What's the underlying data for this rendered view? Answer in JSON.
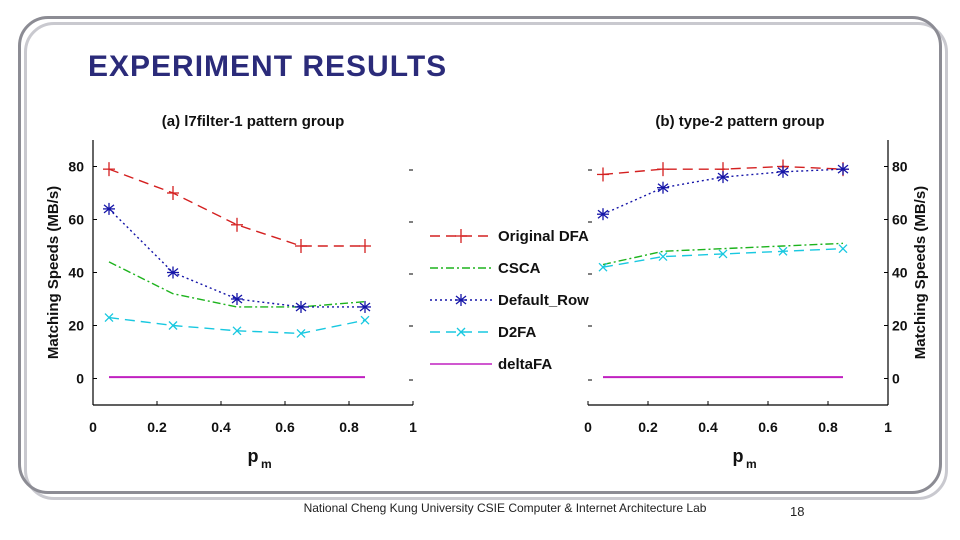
{
  "slide": {
    "title": "EXPERIMENT RESULTS",
    "footer": "National Cheng Kung University CSIE Computer & Internet Architecture Lab",
    "page_number": "18"
  },
  "legend": [
    {
      "name": "Original DFA",
      "color": "#d42020",
      "dash": "10,6",
      "marker": "plus"
    },
    {
      "name": "CSCA",
      "color": "#1db31d",
      "dash": "8,3,2,3",
      "marker": "none"
    },
    {
      "name": "Default_Row",
      "color": "#1515a8",
      "dash": "2,3",
      "marker": "asterisk"
    },
    {
      "name": "D2FA",
      "color": "#18c8e0",
      "dash": "10,6",
      "marker": "x"
    },
    {
      "name": "deltaFA",
      "color": "#c020c0",
      "dash": "",
      "marker": "none"
    }
  ],
  "chart_data": [
    {
      "type": "line",
      "title": "(a) l7filter-1 pattern group",
      "xlabel": "p",
      "xlabel_sub": "m",
      "ylabel": "Matching Speeds (MB/s)",
      "xlim": [
        0,
        1
      ],
      "ylim": [
        -10,
        90
      ],
      "xticks": [
        "0",
        "0.2",
        "0.4",
        "0.6",
        "0.8",
        "1"
      ],
      "yticks": [
        "0",
        "20",
        "40",
        "60",
        "80"
      ],
      "x": [
        0.05,
        0.25,
        0.45,
        0.65,
        0.85
      ],
      "series": [
        {
          "name": "Original DFA",
          "values": [
            79,
            70,
            58,
            50,
            50
          ]
        },
        {
          "name": "CSCA",
          "values": [
            44,
            32,
            27,
            27,
            29
          ]
        },
        {
          "name": "Default_Row",
          "values": [
            64,
            40,
            30,
            27,
            27
          ]
        },
        {
          "name": "D2FA",
          "values": [
            23,
            20,
            18,
            17,
            22
          ]
        },
        {
          "name": "deltaFA",
          "values": [
            0.5,
            0.5,
            0.5,
            0.5,
            0.5
          ]
        }
      ]
    },
    {
      "type": "line",
      "title": "(b) type-2 pattern group",
      "xlabel": "p",
      "xlabel_sub": "m",
      "ylabel": "Matching Speeds (MB/s)",
      "xlim": [
        0,
        1
      ],
      "ylim": [
        -10,
        90
      ],
      "xticks": [
        "0",
        "0.2",
        "0.4",
        "0.6",
        "0.8",
        "1"
      ],
      "yticks": [
        "0",
        "20",
        "40",
        "60",
        "80"
      ],
      "x": [
        0.05,
        0.25,
        0.45,
        0.65,
        0.85
      ],
      "series": [
        {
          "name": "Original DFA",
          "values": [
            77,
            79,
            79,
            80,
            79
          ]
        },
        {
          "name": "CSCA",
          "values": [
            43,
            48,
            49,
            50,
            51
          ]
        },
        {
          "name": "Default_Row",
          "values": [
            62,
            72,
            76,
            78,
            79
          ]
        },
        {
          "name": "D2FA",
          "values": [
            42,
            46,
            47,
            48,
            49
          ]
        },
        {
          "name": "deltaFA",
          "values": [
            0.5,
            0.5,
            0.5,
            0.5,
            0.5
          ]
        }
      ]
    }
  ]
}
